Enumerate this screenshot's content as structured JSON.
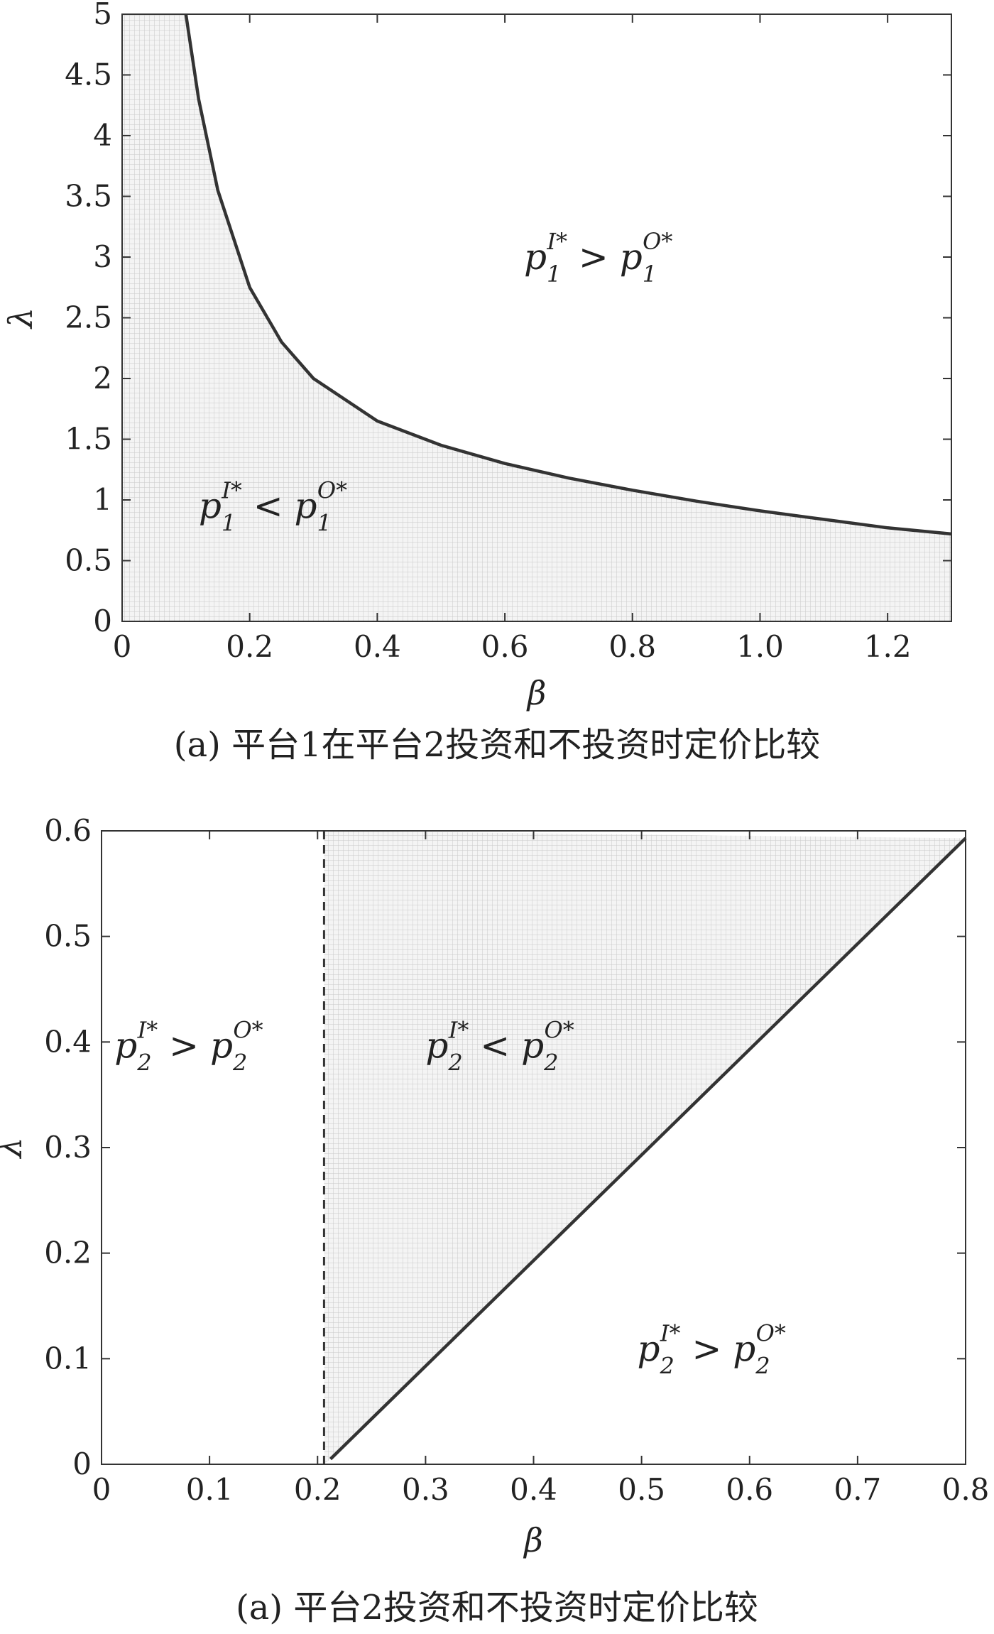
{
  "chart_data": [
    {
      "type": "line",
      "caption": "(a) 平台1在平台2投资和不投资时定价比较",
      "xlabel": "β",
      "ylabel": "λ",
      "xlim": [
        0,
        1.3
      ],
      "ylim": [
        0,
        5
      ],
      "xticks": [
        "0",
        "0.2",
        "0.4",
        "0.6",
        "0.8",
        "1.0",
        "1.2"
      ],
      "xtick_values": [
        0,
        0.2,
        0.4,
        0.6,
        0.8,
        1.0,
        1.2
      ],
      "yticks": [
        "0",
        "0.5",
        "1",
        "1.5",
        "2",
        "2.5",
        "3",
        "3.5",
        "4",
        "4.5",
        "5"
      ],
      "ytick_values": [
        0,
        0.5,
        1,
        1.5,
        2,
        2.5,
        3,
        3.5,
        4,
        4.5,
        5
      ],
      "grid": false,
      "series": [
        {
          "style": "solid",
          "x": [
            0.1,
            0.12,
            0.15,
            0.2,
            0.25,
            0.3,
            0.4,
            0.5,
            0.6,
            0.7,
            0.8,
            0.9,
            1.0,
            1.1,
            1.2,
            1.3
          ],
          "y": [
            5.0,
            4.3,
            3.55,
            2.75,
            2.3,
            2.0,
            1.65,
            1.45,
            1.3,
            1.18,
            1.08,
            0.99,
            0.91,
            0.84,
            0.77,
            0.72
          ]
        }
      ],
      "shaded_region": "below-curve",
      "annotations": [
        {
          "base": "p",
          "sub": "1",
          "sup1": "I*",
          "op": ">",
          "sup2": "O*",
          "x": 0.63,
          "y": 2.9
        },
        {
          "base": "p",
          "sub": "1",
          "sup1": "I*",
          "op": "<",
          "sup2": "O*",
          "x": 0.12,
          "y": 0.85
        }
      ]
    },
    {
      "type": "line",
      "caption": "(a) 平台2投资和不投资时定价比较",
      "xlabel": "β",
      "ylabel": "λ",
      "xlim": [
        0,
        0.8
      ],
      "ylim": [
        0,
        0.6
      ],
      "xticks": [
        "0",
        "0.1",
        "0.2",
        "0.3",
        "0.4",
        "0.5",
        "0.6",
        "0.7",
        "0.8"
      ],
      "xtick_values": [
        0,
        0.1,
        0.2,
        0.3,
        0.4,
        0.5,
        0.6,
        0.7,
        0.8
      ],
      "yticks": [
        "0",
        "0.1",
        "0.2",
        "0.3",
        "0.4",
        "0.5",
        "0.6"
      ],
      "ytick_values": [
        0,
        0.1,
        0.2,
        0.3,
        0.4,
        0.5,
        0.6
      ],
      "grid": false,
      "series": [
        {
          "style": "dashed",
          "x": [
            0.206,
            0.206
          ],
          "y": [
            0,
            0.6
          ]
        },
        {
          "style": "solid",
          "x": [
            0.212,
            0.8
          ],
          "y": [
            0.005,
            0.593
          ]
        }
      ],
      "shaded_region": "between-dashed-and-solid",
      "annotations": [
        {
          "base": "p",
          "sub": "2",
          "sup1": "I*",
          "op": ">",
          "sup2": "O*",
          "x": 0.012,
          "y": 0.385
        },
        {
          "base": "p",
          "sub": "2",
          "sup1": "I*",
          "op": "<",
          "sup2": "O*",
          "x": 0.3,
          "y": 0.385
        },
        {
          "base": "p",
          "sub": "2",
          "sup1": "I*",
          "op": ">",
          "sup2": "O*",
          "x": 0.496,
          "y": 0.098
        }
      ]
    }
  ]
}
